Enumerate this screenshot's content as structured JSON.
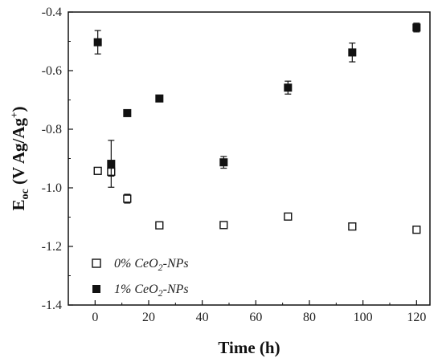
{
  "chart_data": {
    "type": "scatter",
    "xlabel": "Time (h)",
    "ylabel_main": "E",
    "ylabel_sub": "oc",
    "ylabel_paren": " (V Ag/Ag",
    "ylabel_sup": "+",
    "ylabel_close": ")",
    "xlim": [
      -10,
      125
    ],
    "ylim": [
      -1.4,
      -0.4
    ],
    "x_ticks": [
      0,
      20,
      40,
      60,
      80,
      100,
      120
    ],
    "x_tick_labels": [
      "0",
      "20",
      "40",
      "60",
      "80",
      "100",
      "120"
    ],
    "y_ticks": [
      -1.4,
      -1.2,
      -1.0,
      -0.8,
      -0.6,
      -0.4
    ],
    "y_tick_labels": [
      "-1.4",
      "-1.2",
      "-1.0",
      "-0.8",
      "-0.6",
      "-0.4"
    ],
    "legend_position": "bottom-left",
    "series": [
      {
        "name_prefix": "0% CeO",
        "name_sub": "2",
        "name_suffix": "-NPs",
        "marker": "open-square",
        "color": "#111111",
        "points": [
          {
            "x": 1,
            "y": -0.942,
            "err": 0.008
          },
          {
            "x": 6,
            "y": -0.945,
            "err": 0.015
          },
          {
            "x": 12,
            "y": -1.037,
            "err": 0.015
          },
          {
            "x": 24,
            "y": -1.128,
            "err": 0.008
          },
          {
            "x": 48,
            "y": -1.127,
            "err": 0.008
          },
          {
            "x": 72,
            "y": -1.098,
            "err": 0.008
          },
          {
            "x": 96,
            "y": -1.132,
            "err": 0.005
          },
          {
            "x": 120,
            "y": -1.143,
            "err": 0.01
          }
        ]
      },
      {
        "name_prefix": "1% CeO",
        "name_sub": "2",
        "name_suffix": "-NPs",
        "marker": "filled-square",
        "color": "#111111",
        "points": [
          {
            "x": 1,
            "y": -0.503,
            "err": 0.04
          },
          {
            "x": 6,
            "y": -0.918,
            "err": 0.08
          },
          {
            "x": 12,
            "y": -0.745,
            "err": 0.008
          },
          {
            "x": 24,
            "y": -0.695,
            "err": 0.008
          },
          {
            "x": 48,
            "y": -0.913,
            "err": 0.02
          },
          {
            "x": 72,
            "y": -0.658,
            "err": 0.022
          },
          {
            "x": 96,
            "y": -0.538,
            "err": 0.032
          },
          {
            "x": 120,
            "y": -0.453,
            "err": 0.015
          }
        ]
      }
    ]
  }
}
